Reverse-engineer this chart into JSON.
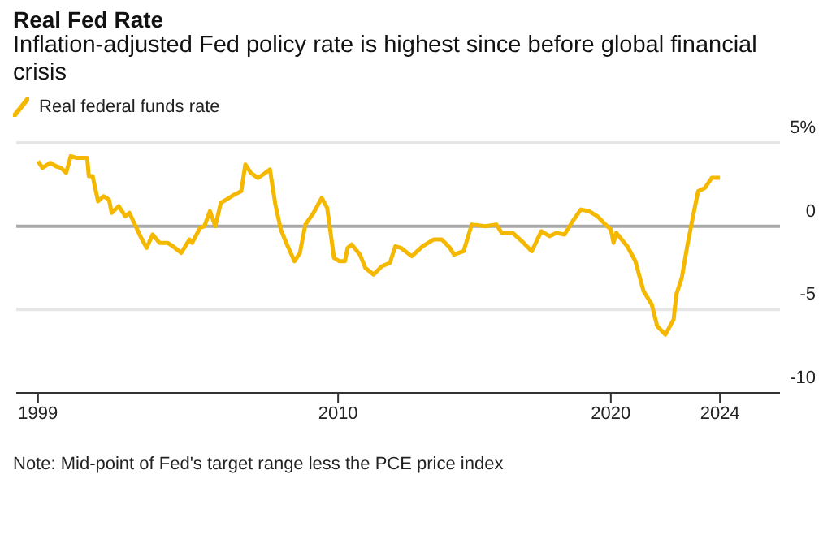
{
  "chart_data": {
    "type": "line",
    "title": "Real Fed Rate",
    "subtitle": "Inflation-adjusted Fed policy rate is highest since before global financial crisis",
    "annotations": [
      "Note: Mid-point of Fed's target range less the PCE price index"
    ],
    "series": [
      {
        "name": "Real federal funds rate",
        "color": "#f5b800",
        "x": [
          1999.0,
          1999.16,
          1999.45,
          1999.65,
          1999.84,
          2000.03,
          2000.2,
          2000.4,
          2000.8,
          2000.86,
          2001.0,
          2001.2,
          2001.4,
          2001.6,
          2001.7,
          2001.96,
          2002.2,
          2002.35,
          2002.55,
          2002.78,
          2002.98,
          2003.2,
          2003.45,
          2003.75,
          2003.94,
          2004.25,
          2004.55,
          2004.65,
          2004.94,
          2005.1,
          2005.3,
          2005.5,
          2005.7,
          2006.0,
          2006.2,
          2006.45,
          2006.6,
          2006.8,
          2007.06,
          2007.25,
          2007.5,
          2007.7,
          2007.9,
          2008.1,
          2008.4,
          2008.6,
          2008.8,
          2009.1,
          2009.4,
          2009.6,
          2009.85,
          2010.05,
          2010.25,
          2010.35,
          2010.5,
          2010.8,
          2011.0,
          2011.3,
          2011.6,
          2011.9,
          2012.1,
          2012.3,
          2012.7,
          2013.1,
          2013.5,
          2013.8,
          2014.1,
          2014.25,
          2014.6,
          2014.9,
          2015.4,
          2015.8,
          2016.0,
          2016.4,
          2016.8,
          2017.1,
          2017.45,
          2017.75,
          2018.0,
          2018.3,
          2018.6,
          2018.9,
          2019.2,
          2019.5,
          2019.8,
          2020.0,
          2020.1,
          2020.2,
          2020.4,
          2020.6,
          2020.9,
          2021.2,
          2021.5,
          2021.7,
          2022.0,
          2022.3,
          2022.4,
          2022.6,
          2022.8,
          2023.0,
          2023.2,
          2023.45,
          2023.7,
          2024.0
        ],
        "values": [
          3.9,
          3.5,
          3.8,
          3.6,
          3.5,
          3.2,
          4.2,
          4.1,
          4.1,
          3.0,
          3.0,
          1.5,
          1.8,
          1.6,
          0.8,
          1.2,
          0.6,
          0.8,
          0.1,
          -0.7,
          -1.3,
          -0.5,
          -1.0,
          -1.0,
          -1.2,
          -1.6,
          -0.8,
          -1.0,
          -0.1,
          0.0,
          0.9,
          0.0,
          1.4,
          1.7,
          1.9,
          2.1,
          3.7,
          3.2,
          2.9,
          3.1,
          3.4,
          1.3,
          -0.2,
          -1.0,
          -2.1,
          -1.6,
          0.1,
          0.8,
          1.7,
          1.1,
          -1.9,
          -2.1,
          -2.1,
          -1.3,
          -1.1,
          -1.7,
          -2.5,
          -2.9,
          -2.4,
          -2.2,
          -1.2,
          -1.3,
          -1.8,
          -1.2,
          -0.8,
          -0.8,
          -1.3,
          -1.7,
          -1.5,
          0.1,
          0.0,
          0.1,
          -0.4,
          -0.4,
          -1.0,
          -1.5,
          -0.3,
          -0.6,
          -0.4,
          -0.5,
          0.3,
          1.0,
          0.9,
          0.6,
          0.1,
          -0.2,
          -1.0,
          -0.4,
          -0.8,
          -1.2,
          -2.1,
          -3.9,
          -4.7,
          -6.0,
          -6.5,
          -5.6,
          -4.1,
          -3.1,
          -1.2,
          0.5,
          2.1,
          2.3,
          2.9,
          2.9
        ]
      }
    ],
    "xlim": [
      1998.2,
      2026.2
    ],
    "xticks": [
      1999,
      2010,
      2020,
      2024
    ],
    "ylim": [
      -10,
      5
    ],
    "yticks": [
      {
        "value": 5,
        "label": "5%"
      },
      0,
      -5,
      -10
    ],
    "ref_lines": [
      {
        "axis": "y",
        "value": 5,
        "color": "#e6e6e6"
      },
      {
        "axis": "y",
        "value": 0,
        "color": "#aaaaaa"
      },
      {
        "axis": "y",
        "value": -5,
        "color": "#e6e6e6"
      }
    ],
    "legend": "top left",
    "marker": "none",
    "line_style": "solid"
  }
}
